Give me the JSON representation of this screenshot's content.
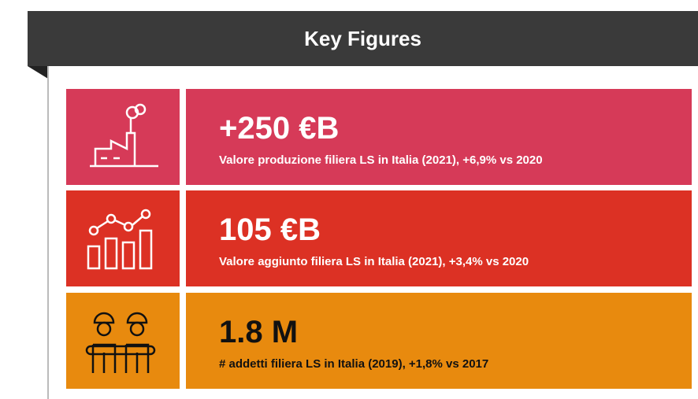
{
  "header": {
    "title": "Key Figures"
  },
  "items": [
    {
      "value": "+250 €B",
      "description": "Valore produzione filiera LS in Italia (2021), +6,9% vs 2020"
    },
    {
      "value": "105 €B",
      "description": "Valore aggiunto filiera LS in Italia (2021), +3,4% vs 2020"
    },
    {
      "value": "1.8 M",
      "description": "# addetti filiera LS in Italia (2019), +1,8% vs 2017"
    }
  ]
}
